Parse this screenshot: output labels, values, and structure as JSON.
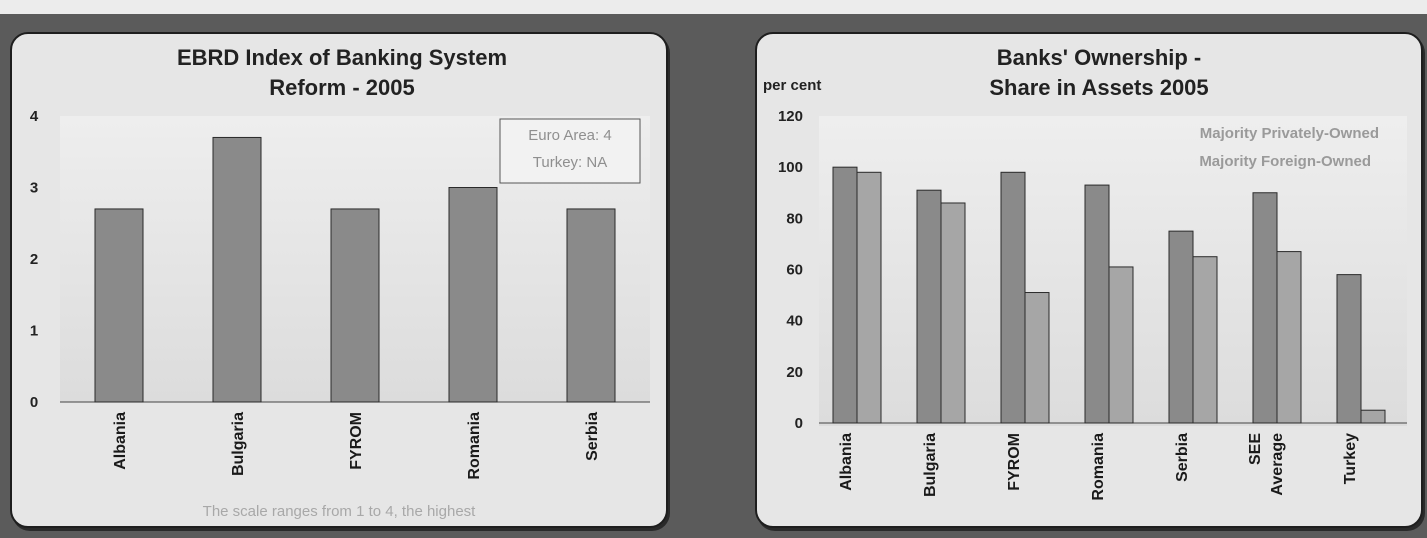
{
  "chart_data": [
    {
      "type": "bar",
      "title_lines": [
        "EBRD Index of Banking System",
        "Reform - 2005"
      ],
      "categories": [
        "Albania",
        "Bulgaria",
        "FYROM",
        "Romania",
        "Serbia"
      ],
      "values": [
        2.7,
        3.7,
        2.7,
        3.0,
        2.7
      ],
      "ylim": [
        0,
        4
      ],
      "yticks": [
        "0",
        "1",
        "2",
        "3",
        "4"
      ],
      "annotation_lines": [
        "Euro Area: 4",
        "Turkey: NA"
      ],
      "footnote": "The scale ranges from 1 to 4, the highest",
      "colors": {
        "bar": "#8a8a8a"
      }
    },
    {
      "type": "bar",
      "title_lines": [
        "Banks' Ownership -",
        "Share in Assets 2005"
      ],
      "ylabel": "per cent",
      "categories": [
        "Albania",
        "Bulgaria",
        "FYROM",
        "Romania",
        "Serbia",
        "SEE Average",
        "Turkey"
      ],
      "category_lines": [
        [
          "Albania"
        ],
        [
          "Bulgaria"
        ],
        [
          "FYROM"
        ],
        [
          "Romania"
        ],
        [
          "Serbia"
        ],
        [
          "SEE",
          "Average"
        ],
        [
          "Turkey"
        ]
      ],
      "series": [
        {
          "name": "Majority Privately-Owned",
          "values": [
            100,
            91,
            98,
            93,
            75,
            90,
            58
          ]
        },
        {
          "name": "Majority Foreign-Owned",
          "values": [
            98,
            86,
            51,
            61,
            65,
            67,
            5
          ]
        }
      ],
      "ylim": [
        0,
        120
      ],
      "yticks": [
        "0",
        "20",
        "40",
        "60",
        "80",
        "100",
        "120"
      ],
      "legend_position": "top-right",
      "colors": {
        "series1": "#8a8a8a",
        "series2": "#a6a6a6"
      }
    }
  ]
}
